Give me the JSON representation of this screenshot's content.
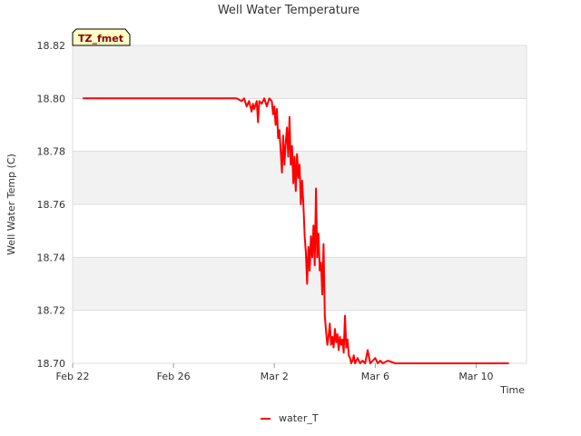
{
  "chart_data": {
    "type": "line",
    "title": "Well Water Temperature",
    "xlabel": "Time",
    "ylabel": "Well Water Temp (C)",
    "badge": "TZ_fmet",
    "xlim": [
      0,
      18
    ],
    "ylim": [
      18.7,
      18.82
    ],
    "x_ticks": [
      {
        "value": 0,
        "label": "Feb 22"
      },
      {
        "value": 4,
        "label": "Feb 26"
      },
      {
        "value": 8,
        "label": "Mar 2"
      },
      {
        "value": 12,
        "label": "Mar 6"
      },
      {
        "value": 16,
        "label": "Mar 10"
      }
    ],
    "y_ticks": [
      {
        "value": 18.7,
        "label": "18.70"
      },
      {
        "value": 18.72,
        "label": "18.72"
      },
      {
        "value": 18.74,
        "label": "18.74"
      },
      {
        "value": 18.76,
        "label": "18.76"
      },
      {
        "value": 18.78,
        "label": "18.78"
      },
      {
        "value": 18.8,
        "label": "18.80"
      },
      {
        "value": 18.82,
        "label": "18.82"
      }
    ],
    "legend_position": "bottom-center",
    "series": [
      {
        "name": "water_T",
        "color": "#ff0000",
        "x": [
          0.4,
          3.0,
          6.0,
          6.5,
          6.7,
          6.8,
          6.9,
          7.0,
          7.1,
          7.15,
          7.2,
          7.3,
          7.35,
          7.4,
          7.5,
          7.6,
          7.7,
          7.8,
          7.9,
          7.95,
          8.0,
          8.05,
          8.1,
          8.15,
          8.2,
          8.25,
          8.3,
          8.35,
          8.4,
          8.45,
          8.5,
          8.55,
          8.6,
          8.65,
          8.7,
          8.75,
          8.8,
          8.85,
          8.9,
          8.95,
          9.0,
          9.05,
          9.1,
          9.15,
          9.2,
          9.25,
          9.3,
          9.35,
          9.4,
          9.45,
          9.5,
          9.55,
          9.6,
          9.65,
          9.7,
          9.75,
          9.8,
          9.85,
          9.9,
          9.95,
          10.0,
          10.05,
          10.1,
          10.15,
          10.2,
          10.25,
          10.3,
          10.35,
          10.4,
          10.45,
          10.5,
          10.55,
          10.6,
          10.65,
          10.7,
          10.75,
          10.8,
          10.85,
          10.9,
          10.95,
          11.0,
          11.05,
          11.1,
          11.15,
          11.2,
          11.3,
          11.4,
          11.5,
          11.6,
          11.7,
          11.8,
          11.9,
          12.0,
          12.1,
          12.2,
          12.3,
          12.5,
          12.8,
          13.0,
          13.5,
          14.0,
          15.0,
          16.0,
          17.3
        ],
        "y": [
          18.8,
          18.8,
          18.8,
          18.8,
          18.799,
          18.8,
          18.797,
          18.799,
          18.795,
          18.798,
          18.796,
          18.799,
          18.791,
          18.799,
          18.798,
          18.8,
          18.797,
          18.8,
          18.799,
          18.794,
          18.797,
          18.79,
          18.796,
          18.785,
          18.788,
          18.78,
          18.772,
          18.786,
          18.775,
          18.783,
          18.789,
          18.778,
          18.793,
          18.775,
          18.782,
          18.768,
          18.778,
          18.765,
          18.779,
          18.77,
          18.775,
          18.76,
          18.769,
          18.76,
          18.748,
          18.742,
          18.73,
          18.744,
          18.735,
          18.748,
          18.74,
          18.752,
          18.737,
          18.766,
          18.74,
          18.749,
          18.735,
          18.738,
          18.726,
          18.745,
          18.718,
          18.712,
          18.707,
          18.71,
          18.715,
          18.707,
          18.71,
          18.706,
          18.713,
          18.708,
          18.711,
          18.705,
          18.71,
          18.707,
          18.709,
          18.704,
          18.718,
          18.706,
          18.709,
          18.703,
          18.702,
          18.7,
          18.701,
          18.703,
          18.7,
          18.702,
          18.7,
          18.701,
          18.7,
          18.705,
          18.7,
          18.701,
          18.702,
          18.7,
          18.701,
          18.7,
          18.701,
          18.7,
          18.7,
          18.7,
          18.7,
          18.7,
          18.7,
          18.7
        ]
      }
    ]
  }
}
